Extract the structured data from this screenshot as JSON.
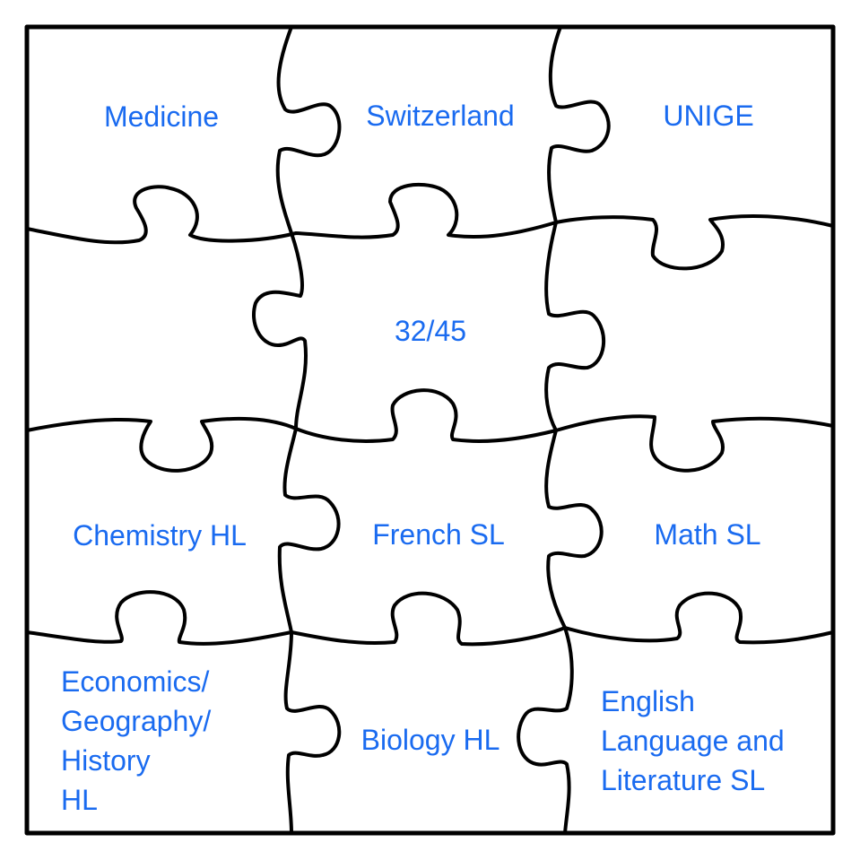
{
  "pieces": {
    "medicine": "Medicine",
    "switzerland": "Switzerland",
    "unige": "UNIGE",
    "score": "32/45",
    "chemistry": "Chemistry HL",
    "french": "French SL",
    "math": "Math SL",
    "economics_lines": [
      "Economics/",
      "Geography/",
      "History",
      "HL"
    ],
    "biology": "Biology HL",
    "english_lines": [
      "English",
      "Language and",
      "Literature SL"
    ]
  },
  "colors": {
    "text": "#1a6bf0",
    "outline": "#000000",
    "background": "#ffffff"
  }
}
